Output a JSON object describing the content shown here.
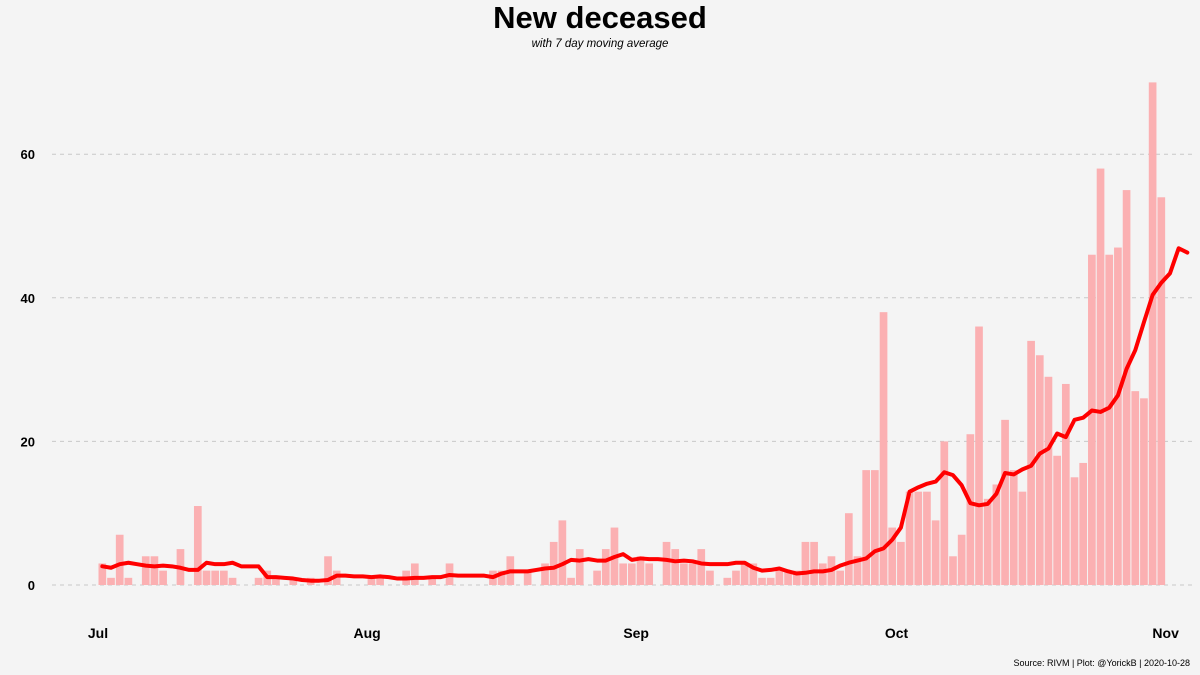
{
  "chart_data": {
    "type": "bar",
    "title": "New deceased",
    "subtitle": "with 7 day moving average",
    "caption": "Source: RIVM | Plot: @YorickB |  2020-10-28",
    "start_date": "2020-07-01",
    "x_ticks": [
      "Jul",
      "Aug",
      "Sep",
      "Oct",
      "Nov"
    ],
    "x_tick_dates": [
      "2020-07-01",
      "2020-08-01",
      "2020-09-01",
      "2020-10-01",
      "2020-11-01"
    ],
    "x_range": [
      "2020-06-30",
      "2020-11-01"
    ],
    "y_ticks": [
      0,
      20,
      40,
      60
    ],
    "ylim": [
      0,
      71
    ],
    "grid": "horizontal dashed",
    "series": [
      {
        "name": "Daily",
        "type": "bar",
        "color": "#fbb0b2",
        "values": [
          3,
          1,
          7,
          1,
          0,
          4,
          4,
          2,
          0,
          5,
          0,
          11,
          2,
          2,
          2,
          1,
          0,
          0,
          1,
          2,
          1,
          0,
          1,
          0,
          1,
          0,
          4,
          2,
          0,
          0,
          0,
          1,
          1,
          0,
          0,
          2,
          3,
          0,
          1,
          0,
          3,
          0,
          0,
          0,
          0,
          2,
          2,
          4,
          0,
          2,
          0,
          3,
          6,
          9,
          1,
          5,
          0,
          2,
          5,
          8,
          3,
          3,
          4,
          3,
          0,
          6,
          5,
          3,
          3,
          5,
          2,
          0,
          1,
          2,
          3,
          3,
          1,
          1,
          2,
          2,
          2,
          6,
          6,
          3,
          4,
          2,
          10,
          4,
          16,
          16,
          38,
          8,
          6,
          13,
          13,
          13,
          9,
          20,
          4,
          7,
          21,
          36,
          12,
          14,
          23,
          16,
          13,
          34,
          32,
          29,
          18,
          28,
          15,
          17,
          46,
          58,
          46,
          47,
          55,
          27,
          26,
          70,
          54
        ]
      },
      {
        "name": "7 day moving average",
        "type": "line",
        "color": "#ff0000",
        "values": [
          2.6,
          2.4,
          2.9,
          3.1,
          2.9,
          2.7,
          2.6,
          2.7,
          2.6,
          2.4,
          2.1,
          2.1,
          3.1,
          2.9,
          2.9,
          3.1,
          2.6,
          2.6,
          2.6,
          1.1,
          1.1,
          1.0,
          0.9,
          0.7,
          0.6,
          0.6,
          0.7,
          1.3,
          1.3,
          1.2,
          1.2,
          1.1,
          1.2,
          1.1,
          0.9,
          0.9,
          1.0,
          1.0,
          1.1,
          1.1,
          1.4,
          1.3,
          1.3,
          1.3,
          1.3,
          1.1,
          1.6,
          1.9,
          1.9,
          1.9,
          2.1,
          2.3,
          2.4,
          2.9,
          3.5,
          3.4,
          3.6,
          3.4,
          3.4,
          3.9,
          4.3,
          3.5,
          3.7,
          3.6,
          3.6,
          3.5,
          3.3,
          3.4,
          3.3,
          3.0,
          2.9,
          2.9,
          2.9,
          3.1,
          3.1,
          2.4,
          2.0,
          2.1,
          2.3,
          1.9,
          1.6,
          1.7,
          1.9,
          1.9,
          2.1,
          2.7,
          3.1,
          3.4,
          3.7,
          4.7,
          5.1,
          6.3,
          8.0,
          13.0,
          13.6,
          14.1,
          14.4,
          15.7,
          15.3,
          13.9,
          11.4,
          11.1,
          11.3,
          12.7,
          15.6,
          15.4,
          16.1,
          16.6,
          18.3,
          19.0,
          21.1,
          20.6,
          23.0,
          23.3,
          24.3,
          24.1,
          24.7,
          26.4,
          30.1,
          32.7,
          36.6,
          40.4,
          42.1,
          43.4,
          46.9,
          46.3
        ]
      }
    ]
  }
}
